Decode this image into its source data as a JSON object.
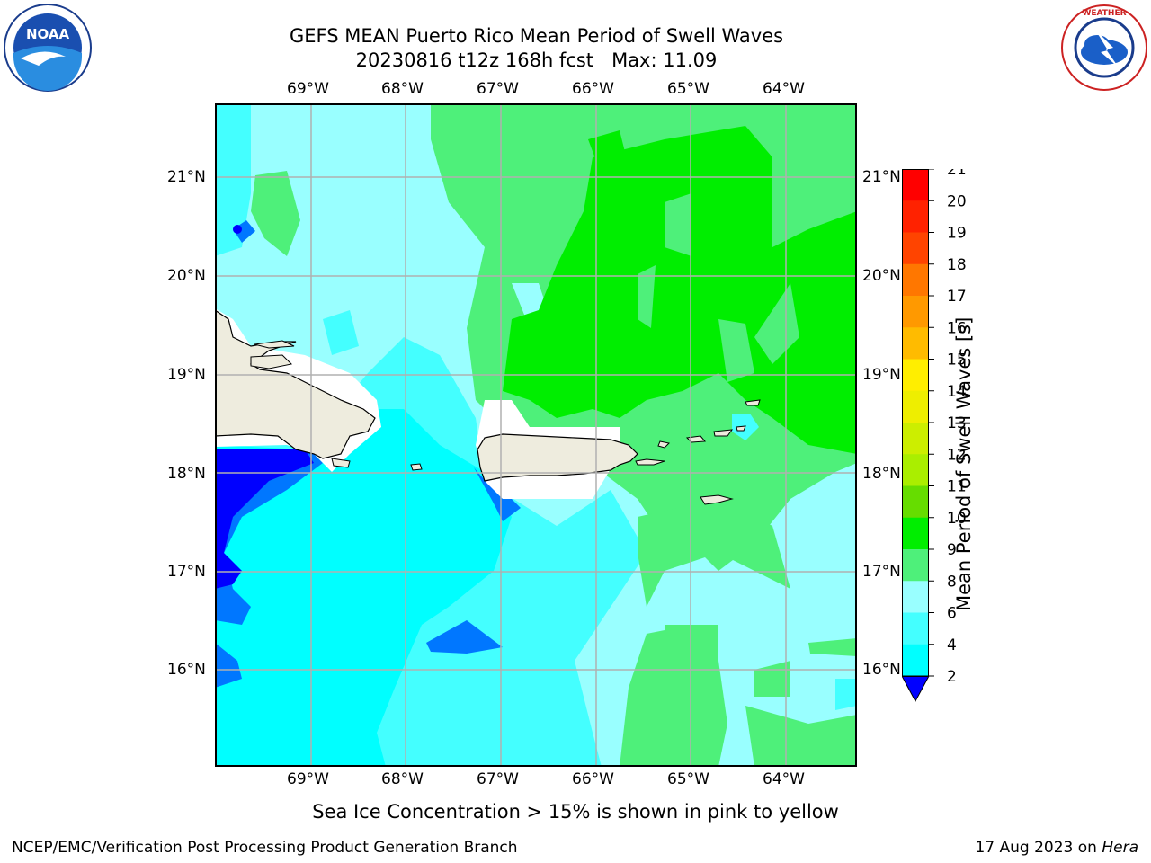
{
  "title": {
    "line1": "GEFS MEAN Puerto Rico Mean Period of Swell Waves",
    "line2": "20230816 t12z 168h fcst   Max: 11.09"
  },
  "logos": {
    "left": {
      "text": "NOAA",
      "icon": "noaa-logo"
    },
    "right": {
      "text": "NATIONAL WEATHER SERVICE",
      "icon": "nws-logo"
    }
  },
  "axes": {
    "lon_labels": [
      "69°W",
      "68°W",
      "67°W",
      "66°W",
      "65°W",
      "64°W"
    ],
    "lat_labels": [
      "21°N",
      "20°N",
      "19°N",
      "18°N",
      "17°N",
      "16°N"
    ]
  },
  "map": {
    "extent": {
      "lon_min": -70.0,
      "lon_max": -63.25,
      "lat_min": 15.0,
      "lat_max": 21.75
    },
    "grid": true,
    "land_color": "#eeecde",
    "regions": "swell period contours around Puerto Rico, Hispaniola and Virgin Islands"
  },
  "colorbar": {
    "label": "Mean Period of Swell Waves [s]",
    "ticks": [
      "21",
      "20",
      "19",
      "18",
      "17",
      "16",
      "15",
      "14",
      "13",
      "12",
      "11",
      "10",
      "9",
      "8",
      "6",
      "4",
      "2"
    ],
    "colors": [
      "#ff0000",
      "#ff2200",
      "#ff4400",
      "#ff7700",
      "#ff9900",
      "#ffbb00",
      "#ffee00",
      "#eeee00",
      "#ccee00",
      "#aaee00",
      "#66dd00",
      "#00ee00",
      "#4ef07a",
      "#99ffff",
      "#44ffff",
      "#00ffff",
      "#0077ff",
      "#0000ff"
    ]
  },
  "caption": "Sea Ice Concentration > 15% is shown in pink to yellow",
  "footer": {
    "left": "NCEP/EMC/Verification Post Processing Product Generation Branch",
    "right_prefix": "17 Aug 2023 on ",
    "right_host": "Hera"
  }
}
